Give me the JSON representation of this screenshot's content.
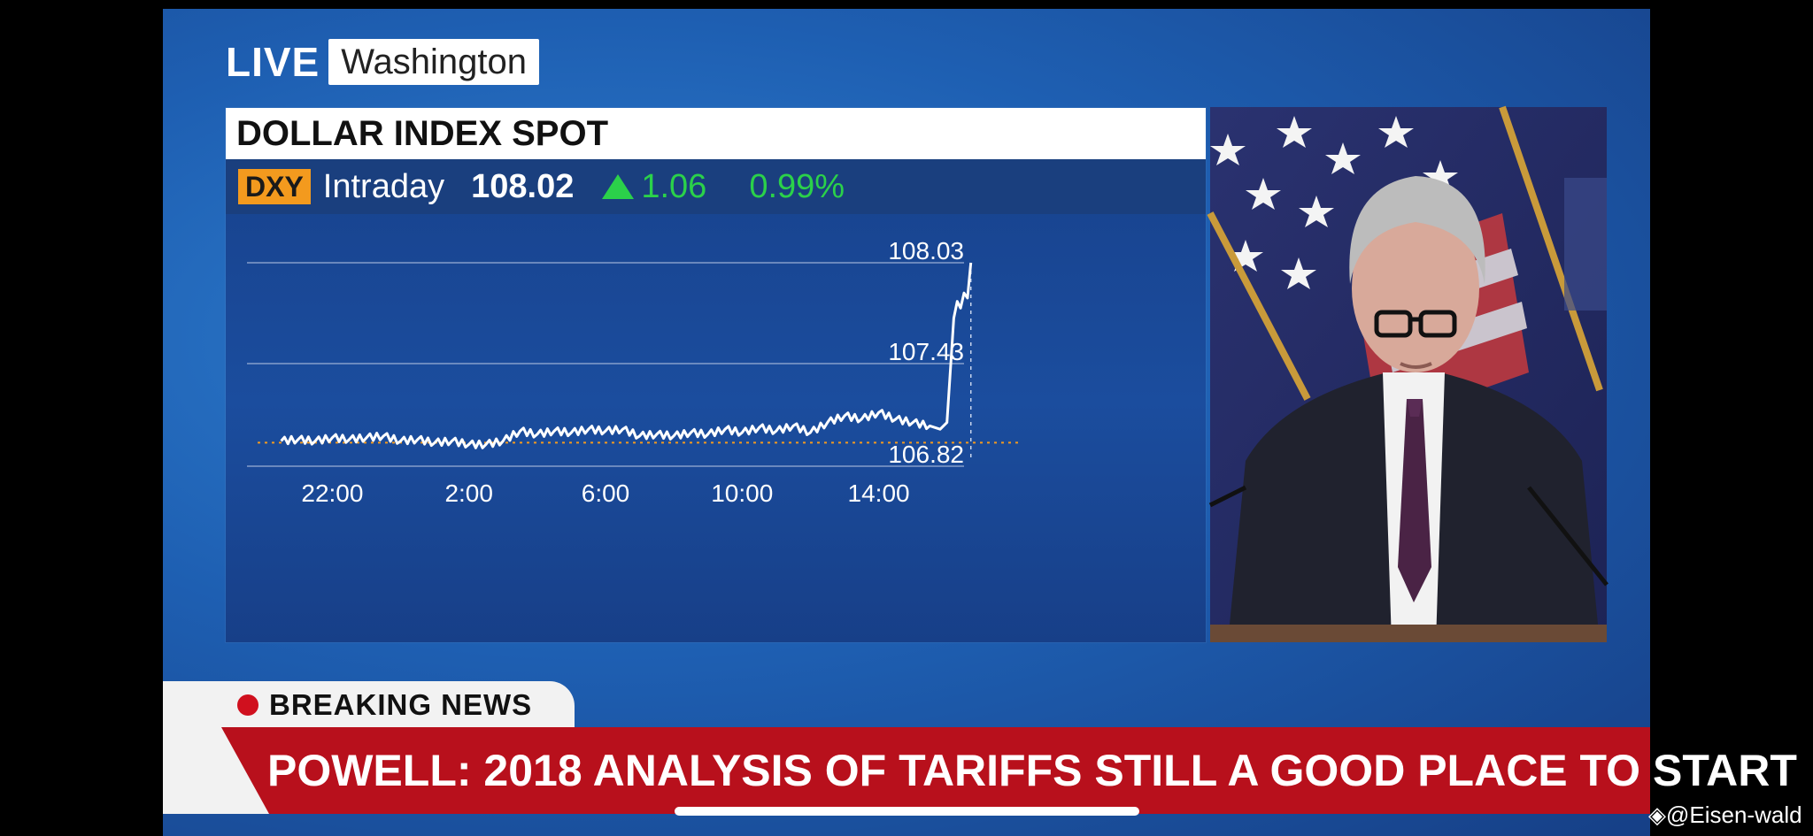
{
  "broadcast": {
    "live_label": "LIVE",
    "location": "Washington"
  },
  "chart_panel": {
    "title": "DOLLAR INDEX SPOT",
    "ticker": "DXY",
    "period": "Intraday",
    "price": "108.02",
    "change": "1.06",
    "change_pct": "0.99%",
    "change_direction": "up",
    "colors": {
      "positive": "#2bd14a",
      "ticker_bg": "#f39a1e",
      "line": "#ffffff",
      "baseline": "#f39a1e"
    }
  },
  "chart_data": {
    "type": "line",
    "title": "DOLLAR INDEX SPOT",
    "xlabel": "",
    "ylabel": "",
    "x_ticks": [
      "22:00",
      "2:00",
      "6:00",
      "10:00",
      "14:00"
    ],
    "y_ticks": [
      "106.82",
      "107.43",
      "108.03"
    ],
    "ylim": [
      106.82,
      108.03
    ],
    "xlim_hours_from_start": [
      -1.0,
      20.0
    ],
    "grid": true,
    "reference_line": {
      "value": 106.96,
      "style": "dotted"
    },
    "series": [
      {
        "values": [
          [
            0.0,
            106.97
          ],
          [
            0.5,
            106.98
          ],
          [
            1.0,
            106.97
          ],
          [
            1.5,
            106.99
          ],
          [
            2.0,
            106.98
          ],
          [
            2.5,
            106.99
          ],
          [
            3.0,
            107.0
          ],
          [
            3.5,
            106.97
          ],
          [
            4.0,
            106.98
          ],
          [
            4.5,
            106.96
          ],
          [
            5.0,
            106.97
          ],
          [
            5.5,
            106.95
          ],
          [
            6.0,
            106.95
          ],
          [
            6.5,
            106.97
          ],
          [
            7.0,
            107.03
          ],
          [
            7.5,
            107.01
          ],
          [
            8.0,
            107.03
          ],
          [
            8.5,
            107.02
          ],
          [
            9.0,
            107.04
          ],
          [
            9.5,
            107.03
          ],
          [
            10.0,
            107.04
          ],
          [
            10.5,
            107.0
          ],
          [
            11.0,
            107.01
          ],
          [
            11.5,
            107.0
          ],
          [
            12.0,
            107.02
          ],
          [
            12.5,
            107.01
          ],
          [
            13.0,
            107.04
          ],
          [
            13.5,
            107.02
          ],
          [
            14.0,
            107.05
          ],
          [
            14.5,
            107.03
          ],
          [
            15.0,
            107.06
          ],
          [
            15.5,
            107.02
          ],
          [
            16.0,
            107.08
          ],
          [
            16.5,
            107.12
          ],
          [
            17.0,
            107.1
          ],
          [
            17.5,
            107.14
          ],
          [
            18.0,
            107.1
          ],
          [
            18.5,
            107.08
          ],
          [
            19.0,
            107.06
          ],
          [
            19.3,
            107.04
          ],
          [
            19.5,
            107.08
          ],
          [
            19.7,
            107.7
          ],
          [
            19.8,
            107.8
          ],
          [
            19.9,
            107.76
          ],
          [
            20.0,
            107.85
          ],
          [
            20.1,
            107.82
          ],
          [
            20.2,
            108.03
          ]
        ]
      }
    ]
  },
  "lower_third": {
    "breaking_label": "BREAKING NEWS",
    "headline": "POWELL: 2018 ANALYSIS OF TARIFFS STILL A GOOD PLACE TO START"
  },
  "watermark": "@Eisen-wald"
}
